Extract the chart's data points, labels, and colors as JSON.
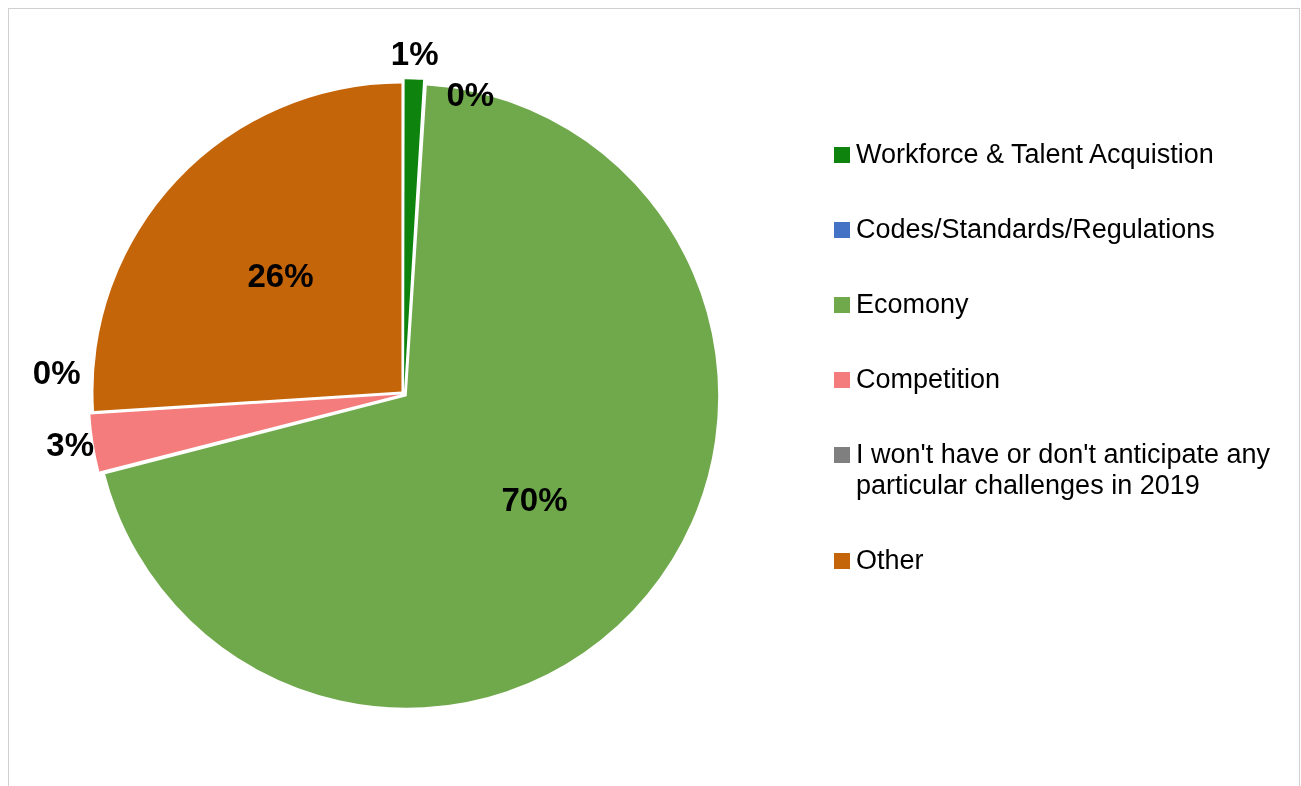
{
  "chart_data": {
    "type": "pie",
    "categories": [
      "Workforce & Talent Acquistion",
      "Codes/Standards/Regulations",
      "Ecomony",
      "Competition",
      "I won't have or don't anticipate any particular challenges in 2019",
      "Other"
    ],
    "values": [
      1,
      0,
      70,
      3,
      0,
      26
    ],
    "colors": [
      "#0e840e",
      "#4472c4",
      "#70a84c",
      "#f47c7c",
      "#7f7f7f",
      "#c5650a"
    ],
    "value_labels": [
      "1%",
      "0%",
      "70%",
      "3%",
      "0%",
      "26%"
    ],
    "legend": "right"
  }
}
